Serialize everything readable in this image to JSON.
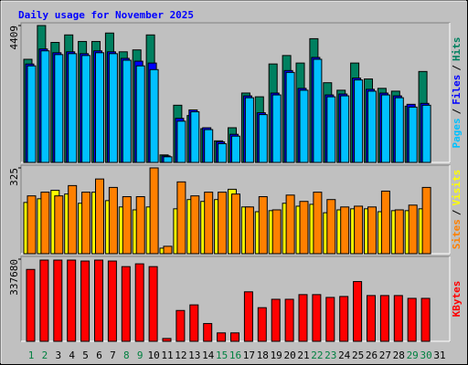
{
  "title": "Daily usage for November 2025",
  "legend_separator": "/",
  "chart_data": [
    {
      "type": "bar",
      "ylim": [
        0,
        4409
      ],
      "yticks": [
        4409
      ],
      "series": [
        {
          "name": "Hits",
          "color": "#008060",
          "values": [
            3322,
            4409,
            3865,
            4107,
            3896,
            3896,
            4167,
            3563,
            3624,
            4107,
            242,
            1842,
            1510,
            1087,
            695,
            1117,
            2235,
            2114,
            3171,
            3443,
            3201,
            3986,
            2567,
            2325,
            3201,
            2688,
            2386,
            2295,
            1812,
            2929,
            null
          ]
        },
        {
          "name": "Files",
          "color": "#0000ff",
          "values": [
            3170,
            3654,
            3533,
            3563,
            3503,
            3593,
            3563,
            3352,
            3261,
            3201,
            210,
            1419,
            1691,
            1117,
            664,
            906,
            2144,
            1600,
            2234,
            2959,
            2385,
            3382,
            2174,
            2204,
            2717,
            2355,
            2234,
            2144,
            1872,
            1902,
            null
          ]
        },
        {
          "name": "Pages",
          "color": "#00c0ff",
          "values": [
            3110,
            3594,
            3473,
            3503,
            3443,
            3533,
            3503,
            3292,
            3110,
            2990,
            181,
            1329,
            1631,
            1057,
            604,
            846,
            2084,
            1540,
            2174,
            2899,
            2325,
            3322,
            2114,
            2144,
            2657,
            2295,
            2174,
            2084,
            1782,
            1842,
            null
          ]
        }
      ]
    },
    {
      "type": "bar",
      "ylim": [
        0,
        325
      ],
      "yticks": [
        325
      ],
      "series": [
        {
          "name": "Visits",
          "color": "#ffff00",
          "values": [
            194,
            208,
            240,
            226,
            191,
            233,
            201,
            177,
            166,
            177,
            21,
            170,
            205,
            198,
            205,
            244,
            177,
            159,
            163,
            191,
            180,
            187,
            155,
            166,
            170,
            170,
            159,
            163,
            163,
            170,
            null
          ]
        },
        {
          "name": "Sites",
          "color": "#ff8000",
          "values": [
            219,
            233,
            219,
            258,
            233,
            283,
            251,
            216,
            216,
            325,
            28,
            272,
            219,
            233,
            233,
            226,
            177,
            216,
            166,
            222,
            198,
            233,
            205,
            177,
            180,
            177,
            237,
            166,
            184,
            251,
            null
          ]
        }
      ]
    },
    {
      "type": "bar",
      "ylim": [
        0,
        337680
      ],
      "yticks": [
        337680
      ],
      "categories": [
        "1",
        "2",
        "3",
        "4",
        "5",
        "6",
        "7",
        "8",
        "9",
        "10",
        "11",
        "12",
        "13",
        "14",
        "15",
        "16",
        "17",
        "18",
        "19",
        "20",
        "21",
        "22",
        "23",
        "24",
        "25",
        "26",
        "27",
        "28",
        "29",
        "30",
        "31"
      ],
      "category_colors": [
        "#008040",
        "#008040",
        "#000000",
        "#000000",
        "#000000",
        "#000000",
        "#000000",
        "#008040",
        "#008040",
        "#000000",
        "#000000",
        "#000000",
        "#000000",
        "#000000",
        "#008040",
        "#008040",
        "#000000",
        "#000000",
        "#000000",
        "#000000",
        "#000000",
        "#008040",
        "#008040",
        "#000000",
        "#000000",
        "#000000",
        "#000000",
        "#000000",
        "#008040",
        "#008040",
        "#000000"
      ],
      "series": [
        {
          "name": "KBytes",
          "color": "#ff0000",
          "values": [
            295470,
            333843,
            333843,
            333843,
            330006,
            333843,
            330006,
            306983,
            318494,
            306983,
            11512,
            126630,
            149654,
            72909,
            34535,
            34535,
            203377,
            138142,
            172677,
            172677,
            191865,
            191865,
            180353,
            184190,
            245587,
            188028,
            188028,
            188028,
            176515,
            176515,
            null
          ]
        }
      ]
    }
  ]
}
